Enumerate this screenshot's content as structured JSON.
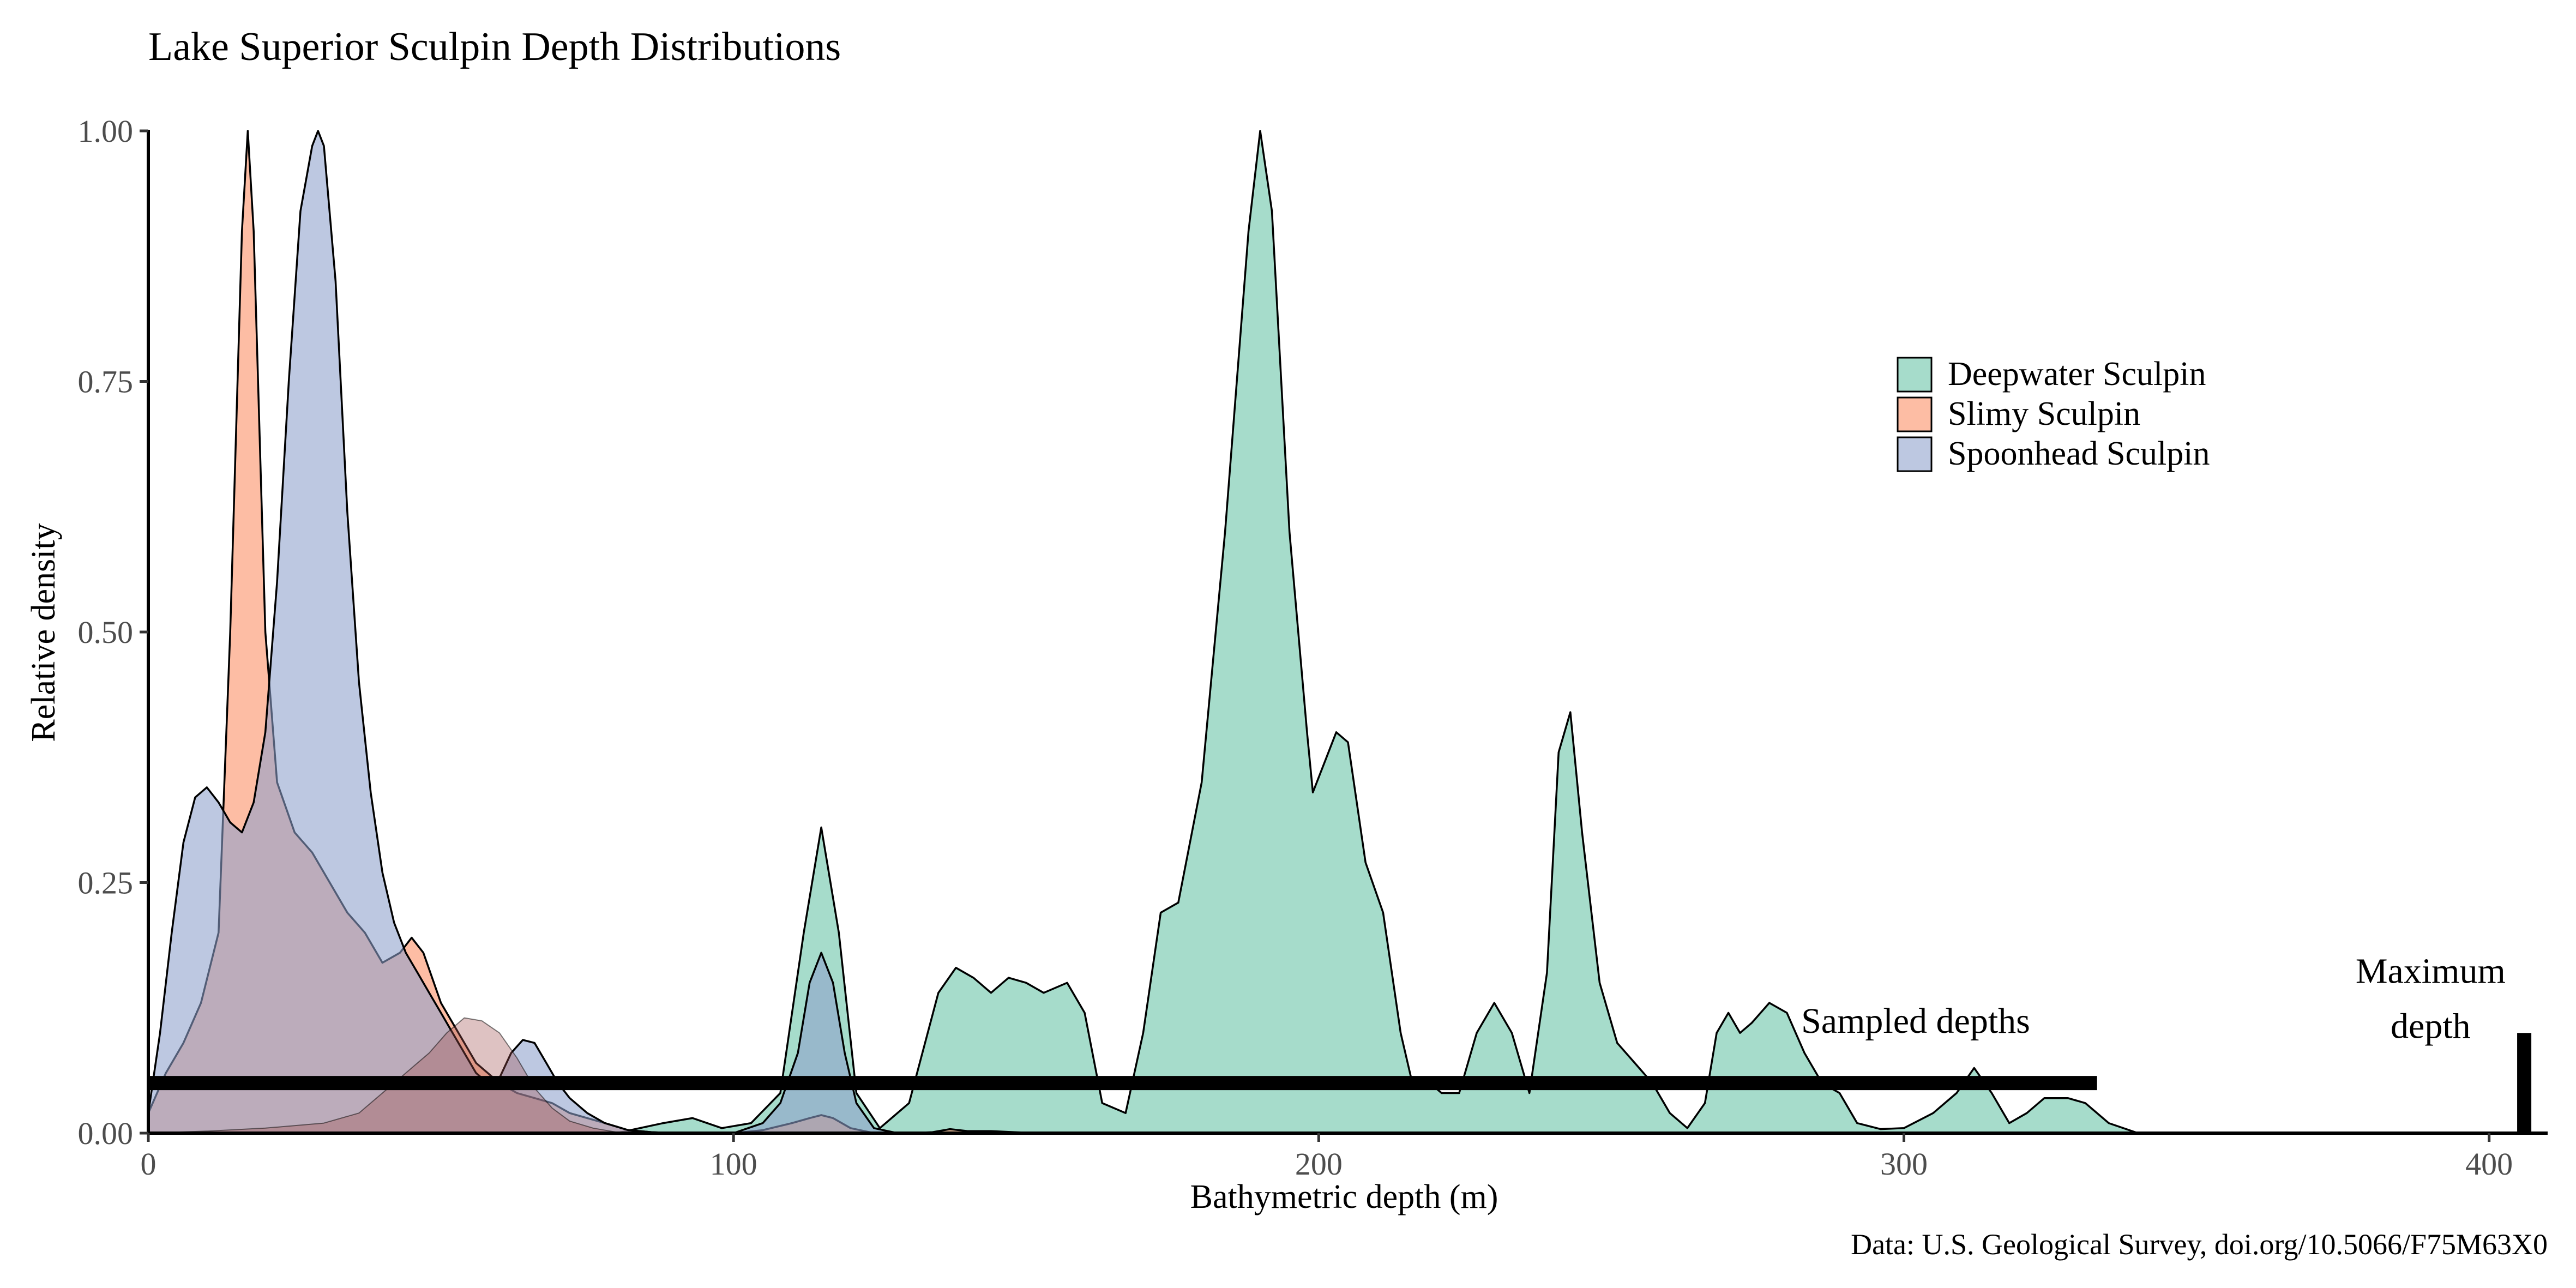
{
  "chart_data": {
    "type": "area",
    "title": "Lake Superior Sculpin Depth Distributions",
    "xlabel": "Bathymetric depth (m)",
    "ylabel": "Relative density",
    "caption": "Data: U.S. Geological Survey, doi.org/10.5066/F75M63X0",
    "xlim": [
      0,
      410
    ],
    "ylim": [
      0,
      1
    ],
    "x_ticks": [
      0,
      100,
      200,
      300,
      400
    ],
    "y_ticks": [
      0,
      0.25,
      0.5,
      0.75,
      1
    ],
    "x_tick_labels": [
      "0",
      "100",
      "200",
      "300",
      "400"
    ],
    "y_tick_labels": [
      "0.00",
      "0.25",
      "0.50",
      "0.75",
      "1.00"
    ],
    "grid": false,
    "legend_position": "right",
    "legend": [
      "Deepwater Sculpin",
      "Slimy Sculpin",
      "Spoonhead Sculpin"
    ],
    "series": [
      {
        "name": "Deepwater Sculpin",
        "color": "#66c2a5",
        "points": [
          [
            0,
            0
          ],
          [
            80,
            0
          ],
          [
            88,
            0.01
          ],
          [
            93,
            0.015
          ],
          [
            98,
            0.005
          ],
          [
            103,
            0.01
          ],
          [
            108,
            0.04
          ],
          [
            112,
            0.2
          ],
          [
            115,
            0.305
          ],
          [
            118,
            0.2
          ],
          [
            121,
            0.04
          ],
          [
            125,
            0.005
          ],
          [
            130,
            0.03
          ],
          [
            135,
            0.14
          ],
          [
            138,
            0.165
          ],
          [
            141,
            0.155
          ],
          [
            144,
            0.14
          ],
          [
            147,
            0.155
          ],
          [
            150,
            0.15
          ],
          [
            153,
            0.14
          ],
          [
            157,
            0.15
          ],
          [
            160,
            0.12
          ],
          [
            163,
            0.03
          ],
          [
            167,
            0.02
          ],
          [
            170,
            0.1
          ],
          [
            173,
            0.22
          ],
          [
            176,
            0.23
          ],
          [
            180,
            0.35
          ],
          [
            184,
            0.6
          ],
          [
            188,
            0.9
          ],
          [
            190,
            1.0
          ],
          [
            192,
            0.92
          ],
          [
            195,
            0.6
          ],
          [
            198,
            0.4
          ],
          [
            199,
            0.34
          ],
          [
            201,
            0.37
          ],
          [
            203,
            0.4
          ],
          [
            205,
            0.39
          ],
          [
            208,
            0.27
          ],
          [
            211,
            0.22
          ],
          [
            214,
            0.1
          ],
          [
            216,
            0.05
          ],
          [
            219,
            0.05
          ],
          [
            221,
            0.04
          ],
          [
            224,
            0.04
          ],
          [
            227,
            0.1
          ],
          [
            230,
            0.13
          ],
          [
            233,
            0.1
          ],
          [
            236,
            0.04
          ],
          [
            239,
            0.16
          ],
          [
            241,
            0.38
          ],
          [
            243,
            0.42
          ],
          [
            245,
            0.3
          ],
          [
            248,
            0.15
          ],
          [
            251,
            0.09
          ],
          [
            254,
            0.07
          ],
          [
            257,
            0.05
          ],
          [
            260,
            0.02
          ],
          [
            263,
            0.005
          ],
          [
            266,
            0.03
          ],
          [
            268,
            0.1
          ],
          [
            270,
            0.12
          ],
          [
            272,
            0.1
          ],
          [
            274,
            0.11
          ],
          [
            277,
            0.13
          ],
          [
            280,
            0.12
          ],
          [
            283,
            0.08
          ],
          [
            286,
            0.05
          ],
          [
            289,
            0.04
          ],
          [
            292,
            0.01
          ],
          [
            296,
            0.004
          ],
          [
            300,
            0.005
          ],
          [
            305,
            0.02
          ],
          [
            309,
            0.04
          ],
          [
            312,
            0.065
          ],
          [
            315,
            0.04
          ],
          [
            318,
            0.01
          ],
          [
            321,
            0.02
          ],
          [
            324,
            0.035
          ],
          [
            328,
            0.035
          ],
          [
            331,
            0.03
          ],
          [
            335,
            0.01
          ],
          [
            340,
            0
          ]
        ]
      },
      {
        "name": "Slimy Sculpin",
        "color": "#fc8d62",
        "points": [
          [
            0,
            0.02
          ],
          [
            3,
            0.06
          ],
          [
            6,
            0.09
          ],
          [
            9,
            0.13
          ],
          [
            12,
            0.2
          ],
          [
            14,
            0.5
          ],
          [
            16,
            0.9
          ],
          [
            17,
            1.0
          ],
          [
            18,
            0.9
          ],
          [
            20,
            0.5
          ],
          [
            22,
            0.35
          ],
          [
            25,
            0.3
          ],
          [
            28,
            0.28
          ],
          [
            31,
            0.25
          ],
          [
            34,
            0.22
          ],
          [
            37,
            0.2
          ],
          [
            40,
            0.17
          ],
          [
            43,
            0.18
          ],
          [
            45,
            0.195
          ],
          [
            47,
            0.18
          ],
          [
            50,
            0.13
          ],
          [
            53,
            0.1
          ],
          [
            56,
            0.07
          ],
          [
            60,
            0.05
          ],
          [
            63,
            0.04
          ],
          [
            66,
            0.035
          ],
          [
            69,
            0.03
          ],
          [
            72,
            0.02
          ],
          [
            75,
            0.015
          ],
          [
            78,
            0.01
          ],
          [
            82,
            0.003
          ],
          [
            86,
            0.001
          ],
          [
            90,
            0
          ],
          [
            100,
            0
          ],
          [
            105,
            0.003
          ],
          [
            110,
            0.01
          ],
          [
            113,
            0.015
          ],
          [
            115,
            0.018
          ],
          [
            117,
            0.015
          ],
          [
            120,
            0.005
          ],
          [
            124,
            0
          ],
          [
            130,
            0
          ],
          [
            134,
            0.001
          ],
          [
            137,
            0.004
          ],
          [
            140,
            0.002
          ],
          [
            144,
            0.002
          ],
          [
            148,
            0.001
          ],
          [
            152,
            0
          ]
        ]
      },
      {
        "name": "Spoonhead Sculpin",
        "color": "#8da0cb",
        "points": [
          [
            0,
            0.02
          ],
          [
            2,
            0.1
          ],
          [
            4,
            0.2
          ],
          [
            6,
            0.29
          ],
          [
            8,
            0.335
          ],
          [
            10,
            0.345
          ],
          [
            12,
            0.33
          ],
          [
            14,
            0.31
          ],
          [
            16,
            0.3
          ],
          [
            18,
            0.33
          ],
          [
            20,
            0.4
          ],
          [
            22,
            0.55
          ],
          [
            24,
            0.75
          ],
          [
            26,
            0.92
          ],
          [
            28,
            0.985
          ],
          [
            29,
            1.0
          ],
          [
            30,
            0.985
          ],
          [
            32,
            0.85
          ],
          [
            34,
            0.62
          ],
          [
            36,
            0.45
          ],
          [
            38,
            0.34
          ],
          [
            40,
            0.26
          ],
          [
            42,
            0.21
          ],
          [
            44,
            0.18
          ],
          [
            46,
            0.16
          ],
          [
            48,
            0.14
          ],
          [
            50,
            0.12
          ],
          [
            52,
            0.1
          ],
          [
            54,
            0.08
          ],
          [
            56,
            0.06
          ],
          [
            58,
            0.05
          ],
          [
            60,
            0.055
          ],
          [
            62,
            0.08
          ],
          [
            64,
            0.093
          ],
          [
            66,
            0.09
          ],
          [
            68,
            0.07
          ],
          [
            70,
            0.05
          ],
          [
            72,
            0.035
          ],
          [
            75,
            0.02
          ],
          [
            78,
            0.01
          ],
          [
            82,
            0.003
          ],
          [
            86,
            0.001
          ],
          [
            90,
            0
          ],
          [
            100,
            0
          ],
          [
            105,
            0.01
          ],
          [
            108,
            0.03
          ],
          [
            111,
            0.08
          ],
          [
            113,
            0.15
          ],
          [
            115,
            0.18
          ],
          [
            117,
            0.15
          ],
          [
            119,
            0.08
          ],
          [
            121,
            0.03
          ],
          [
            124,
            0.005
          ],
          [
            128,
            0
          ]
        ]
      },
      {
        "name": "Overlap",
        "color": "#a05050",
        "points": [
          [
            0,
            0
          ],
          [
            10,
            0.002
          ],
          [
            20,
            0.005
          ],
          [
            30,
            0.01
          ],
          [
            36,
            0.02
          ],
          [
            40,
            0.04
          ],
          [
            44,
            0.06
          ],
          [
            48,
            0.08
          ],
          [
            51,
            0.1
          ],
          [
            54,
            0.115
          ],
          [
            57,
            0.112
          ],
          [
            60,
            0.1
          ],
          [
            63,
            0.075
          ],
          [
            66,
            0.045
          ],
          [
            69,
            0.025
          ],
          [
            72,
            0.012
          ],
          [
            76,
            0.005
          ],
          [
            80,
            0.001
          ],
          [
            84,
            0
          ]
        ]
      }
    ],
    "annotations": [
      {
        "text": "Sampled depths",
        "x": 302,
        "y": 0.1
      },
      {
        "text": "Maximum",
        "x": 390,
        "y": 0.15
      },
      {
        "text": "depth",
        "x": 390,
        "y": 0.095
      }
    ],
    "sampled_depths_bar": {
      "x_start": 0,
      "x_end": 333,
      "y": 0.05
    },
    "maximum_depth_marker": {
      "x": 406,
      "y_start": 0,
      "y_end": 0.1
    }
  }
}
